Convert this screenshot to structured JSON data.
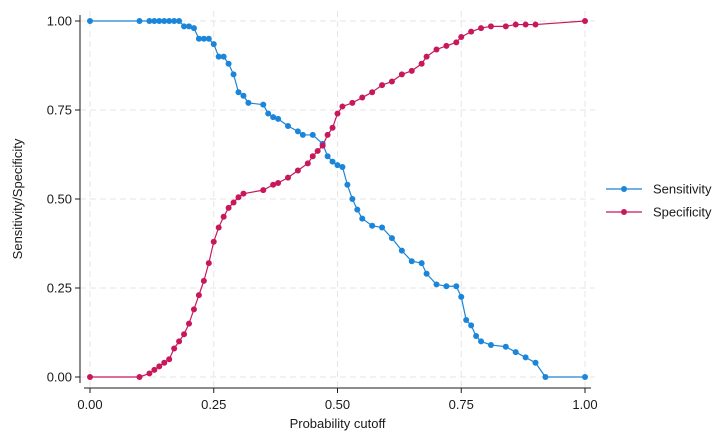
{
  "chart_data": {
    "type": "line",
    "xlabel": "Probability cutoff",
    "ylabel": "Sensitivity/Specificity",
    "xlim": [
      0,
      1
    ],
    "ylim": [
      0,
      1
    ],
    "xticks": [
      "0.00",
      "0.25",
      "0.50",
      "0.75",
      "1.00"
    ],
    "yticks": [
      "0.00",
      "0.25",
      "0.50",
      "0.75",
      "1.00"
    ],
    "xtick_values": [
      0,
      0.25,
      0.5,
      0.75,
      1
    ],
    "ytick_values": [
      0,
      0.25,
      0.5,
      0.75,
      1
    ],
    "grid": true,
    "legend_position": "right",
    "series": [
      {
        "name": "Sensitivity",
        "color": "#1a85d9",
        "marker": "circle",
        "points": [
          [
            0.0,
            1.0
          ],
          [
            0.1,
            1.0
          ],
          [
            0.12,
            1.0
          ],
          [
            0.13,
            1.0
          ],
          [
            0.14,
            1.0
          ],
          [
            0.15,
            1.0
          ],
          [
            0.16,
            1.0
          ],
          [
            0.17,
            1.0
          ],
          [
            0.18,
            1.0
          ],
          [
            0.19,
            0.985
          ],
          [
            0.2,
            0.985
          ],
          [
            0.21,
            0.98
          ],
          [
            0.22,
            0.95
          ],
          [
            0.23,
            0.95
          ],
          [
            0.24,
            0.95
          ],
          [
            0.25,
            0.935
          ],
          [
            0.26,
            0.9
          ],
          [
            0.27,
            0.9
          ],
          [
            0.28,
            0.88
          ],
          [
            0.29,
            0.85
          ],
          [
            0.3,
            0.8
          ],
          [
            0.31,
            0.79
          ],
          [
            0.32,
            0.77
          ],
          [
            0.35,
            0.765
          ],
          [
            0.36,
            0.74
          ],
          [
            0.37,
            0.73
          ],
          [
            0.38,
            0.725
          ],
          [
            0.4,
            0.705
          ],
          [
            0.42,
            0.69
          ],
          [
            0.43,
            0.68
          ],
          [
            0.45,
            0.68
          ],
          [
            0.47,
            0.655
          ],
          [
            0.48,
            0.62
          ],
          [
            0.49,
            0.605
          ],
          [
            0.5,
            0.595
          ],
          [
            0.51,
            0.59
          ],
          [
            0.52,
            0.54
          ],
          [
            0.53,
            0.5
          ],
          [
            0.54,
            0.47
          ],
          [
            0.55,
            0.445
          ],
          [
            0.57,
            0.425
          ],
          [
            0.59,
            0.42
          ],
          [
            0.61,
            0.39
          ],
          [
            0.63,
            0.355
          ],
          [
            0.65,
            0.325
          ],
          [
            0.67,
            0.32
          ],
          [
            0.68,
            0.29
          ],
          [
            0.7,
            0.26
          ],
          [
            0.72,
            0.255
          ],
          [
            0.74,
            0.255
          ],
          [
            0.75,
            0.225
          ],
          [
            0.76,
            0.16
          ],
          [
            0.77,
            0.145
          ],
          [
            0.78,
            0.115
          ],
          [
            0.79,
            0.1
          ],
          [
            0.81,
            0.09
          ],
          [
            0.84,
            0.085
          ],
          [
            0.86,
            0.07
          ],
          [
            0.88,
            0.055
          ],
          [
            0.9,
            0.04
          ],
          [
            0.92,
            0.0
          ],
          [
            1.0,
            0.0
          ]
        ]
      },
      {
        "name": "Specificity",
        "color": "#c8185c",
        "marker": "circle",
        "points": [
          [
            0.0,
            0.0
          ],
          [
            0.1,
            0.0
          ],
          [
            0.12,
            0.01
          ],
          [
            0.13,
            0.02
          ],
          [
            0.14,
            0.03
          ],
          [
            0.15,
            0.04
          ],
          [
            0.16,
            0.05
          ],
          [
            0.17,
            0.08
          ],
          [
            0.18,
            0.1
          ],
          [
            0.19,
            0.12
          ],
          [
            0.2,
            0.15
          ],
          [
            0.21,
            0.19
          ],
          [
            0.22,
            0.23
          ],
          [
            0.23,
            0.27
          ],
          [
            0.24,
            0.32
          ],
          [
            0.25,
            0.38
          ],
          [
            0.26,
            0.42
          ],
          [
            0.27,
            0.45
          ],
          [
            0.28,
            0.475
          ],
          [
            0.29,
            0.49
          ],
          [
            0.3,
            0.505
          ],
          [
            0.31,
            0.515
          ],
          [
            0.35,
            0.525
          ],
          [
            0.37,
            0.54
          ],
          [
            0.38,
            0.545
          ],
          [
            0.4,
            0.56
          ],
          [
            0.42,
            0.58
          ],
          [
            0.44,
            0.6
          ],
          [
            0.45,
            0.62
          ],
          [
            0.46,
            0.635
          ],
          [
            0.47,
            0.65
          ],
          [
            0.48,
            0.68
          ],
          [
            0.49,
            0.7
          ],
          [
            0.5,
            0.74
          ],
          [
            0.51,
            0.76
          ],
          [
            0.53,
            0.77
          ],
          [
            0.55,
            0.785
          ],
          [
            0.57,
            0.8
          ],
          [
            0.59,
            0.82
          ],
          [
            0.61,
            0.83
          ],
          [
            0.63,
            0.85
          ],
          [
            0.65,
            0.86
          ],
          [
            0.67,
            0.88
          ],
          [
            0.68,
            0.9
          ],
          [
            0.7,
            0.92
          ],
          [
            0.72,
            0.93
          ],
          [
            0.74,
            0.94
          ],
          [
            0.75,
            0.955
          ],
          [
            0.77,
            0.97
          ],
          [
            0.79,
            0.98
          ],
          [
            0.81,
            0.985
          ],
          [
            0.84,
            0.985
          ],
          [
            0.86,
            0.99
          ],
          [
            0.88,
            0.99
          ],
          [
            0.9,
            0.99
          ],
          [
            1.0,
            1.0
          ]
        ]
      }
    ]
  }
}
